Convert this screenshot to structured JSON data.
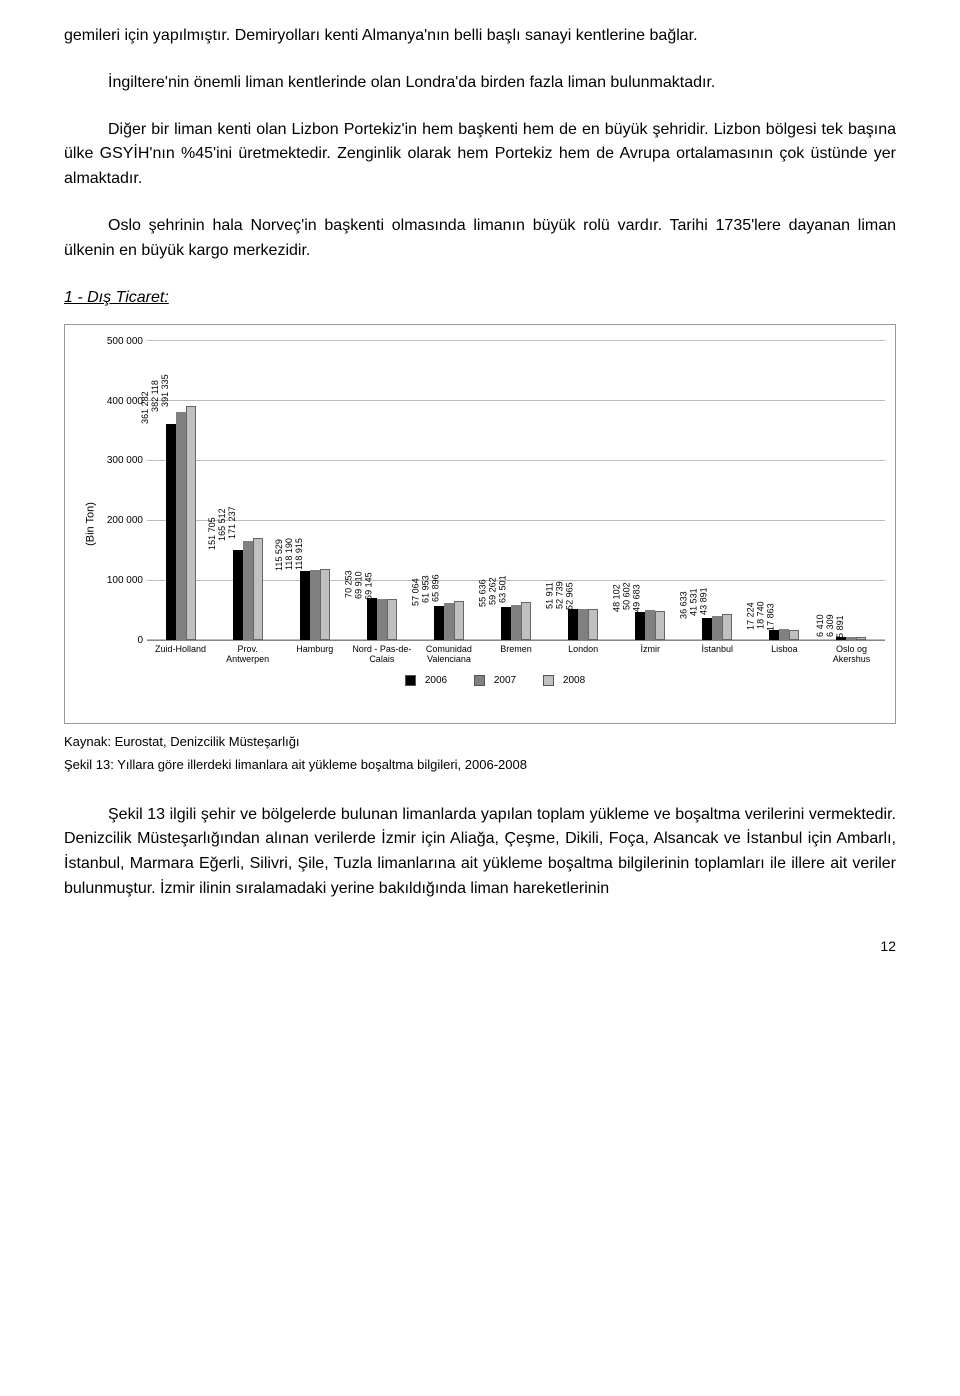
{
  "paragraphs": {
    "p1": "gemileri için yapılmıştır. Demiryolları kenti Almanya'nın belli başlı sanayi kentlerine bağlar.",
    "p2": "İngiltere'nin önemli liman kentlerinde olan Londra'da birden fazla liman bulunmaktadır.",
    "p3": "Diğer bir liman kenti olan Lizbon Portekiz'in hem başkenti hem de en büyük şehridir. Lizbon bölgesi tek başına ülke GSYİH'nın %45'ini üretmektedir. Zenginlik olarak hem Portekiz hem de Avrupa ortalamasının çok üstünde yer almaktadır.",
    "p4": "Oslo şehrinin hala Norveç'in başkenti olmasında limanın büyük rolü vardır. Tarihi 1735'lere dayanan liman ülkenin en büyük kargo merkezidir."
  },
  "section_title": "1 - Dış Ticaret:",
  "chart": {
    "type": "bar",
    "y_axis_label": "(Bin Ton)",
    "ylim": [
      0,
      500000
    ],
    "ytick_step": 100000,
    "ytick_labels": [
      "0",
      "100 000",
      "200 000",
      "300 000",
      "400 000",
      "500 000"
    ],
    "series_names": [
      "2006",
      "2007",
      "2008"
    ],
    "series_colors": [
      "#000000",
      "#808080",
      "#c0c0c0"
    ],
    "categories": [
      {
        "label": "Zuid-Holland",
        "values": [
          361282,
          382118,
          391335
        ],
        "value_labels": [
          "361 282",
          "382 118",
          "391 335"
        ]
      },
      {
        "label": "Prov. Antwerpen",
        "values": [
          151705,
          165512,
          171237
        ],
        "value_labels": [
          "151 705",
          "165 512",
          "171 237"
        ]
      },
      {
        "label": "Hamburg",
        "values": [
          115529,
          118190,
          118915
        ],
        "value_labels": [
          "115 529",
          "118 190",
          "118 915"
        ]
      },
      {
        "label": "Nord - Pas-de-Calais",
        "values": [
          70253,
          69910,
          69145
        ],
        "value_labels": [
          "70 253",
          "69 910",
          "69 145"
        ]
      },
      {
        "label": "Comunidad Valenciana",
        "values": [
          57064,
          61953,
          65896
        ],
        "value_labels": [
          "57 064",
          "61 953",
          "65 896"
        ]
      },
      {
        "label": "Bremen",
        "values": [
          55636,
          59262,
          63501
        ],
        "value_labels": [
          "55 636",
          "59 262",
          "63 501"
        ]
      },
      {
        "label": "London",
        "values": [
          51911,
          52739,
          52965
        ],
        "value_labels": [
          "51 911",
          "52 739",
          "52 965"
        ]
      },
      {
        "label": "İzmir",
        "values": [
          48102,
          50602,
          49683
        ],
        "value_labels": [
          "48 102",
          "50 602",
          "49 683"
        ]
      },
      {
        "label": "İstanbul",
        "values": [
          36633,
          41531,
          43891
        ],
        "value_labels": [
          "36 633",
          "41 531",
          "43 891"
        ]
      },
      {
        "label": "Lisboa",
        "values": [
          17224,
          18740,
          17863
        ],
        "value_labels": [
          "17 224",
          "18 740",
          "17 863"
        ]
      },
      {
        "label": "Oslo og Akershus",
        "values": [
          6410,
          6309,
          5891
        ],
        "value_labels": [
          "6 410",
          "6 309",
          "5 891"
        ]
      }
    ],
    "background_color": "#ffffff",
    "grid_color": "#bbbbbb",
    "title_fontsize": 10,
    "label_fontsize": 9
  },
  "source": "Kaynak: Eurostat, Denizcilik Müsteşarlığı",
  "caption": "Şekil 13: Yıllara göre illerdeki limanlara ait yükleme boşaltma bilgileri, 2006-2008",
  "p5": "Şekil 13 ilgili şehir ve bölgelerde bulunan limanlarda yapılan toplam yükleme ve boşaltma verilerini vermektedir. Denizcilik Müsteşarlığından alınan verilerde İzmir için Aliağa, Çeşme, Dikili, Foça, Alsancak ve İstanbul için Ambarlı, İstanbul, Marmara Eğerli, Silivri, Şile, Tuzla limanlarına ait yükleme boşaltma bilgilerinin toplamları ile illere ait veriler bulunmuştur. İzmir ilinin sıralamadaki yerine bakıldığında liman hareketlerinin",
  "page_number": "12"
}
